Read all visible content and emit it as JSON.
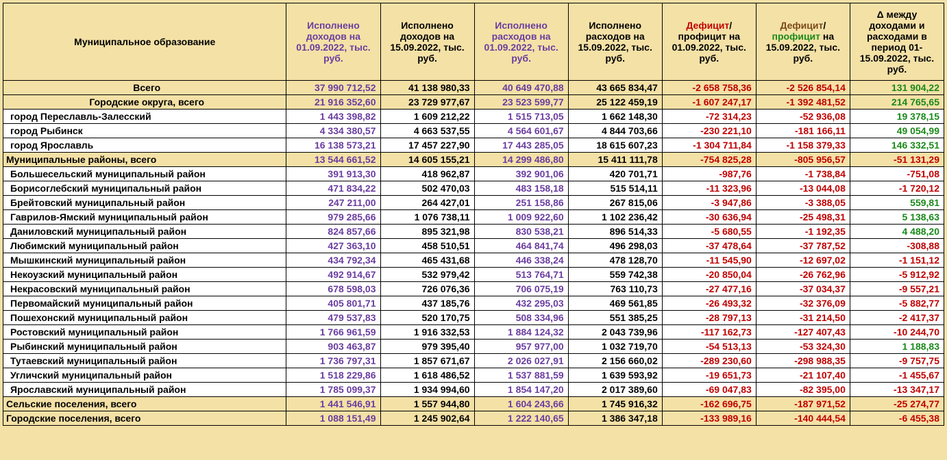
{
  "colors": {
    "black": "#000000",
    "purple": "#6a3da0",
    "red": "#c00000",
    "green": "#1a8a1a",
    "brown": "#7a4a17"
  },
  "columns": [
    {
      "key": "name",
      "label": "Муниципальное образование",
      "color": "black"
    },
    {
      "key": "c1",
      "label": "Исполнено доходов на 01.09.2022, тыс. руб.",
      "color": "purple"
    },
    {
      "key": "c2",
      "label": "Исполнено доходов на 15.09.2022, тыс. руб.",
      "color": "black"
    },
    {
      "key": "c3",
      "label": "Исполнено расходов на 01.09.2022, тыс. руб.",
      "color": "purple"
    },
    {
      "key": "c4",
      "label": "Исполнено расходов на 15.09.2022, тыс. руб.",
      "color": "black"
    },
    {
      "key": "c5",
      "label": "Дефицит/ профицит на 01.09.2022, тыс. руб.",
      "color": "black",
      "span_color": {
        "text": "Дефицит",
        "color": "red"
      }
    },
    {
      "key": "c6",
      "label": "Дефицит/ профицит на 15.09.2022, тыс. руб.",
      "color": "black",
      "span_color": {
        "text": "Дефицит",
        "color": "brown"
      },
      "span_color2": {
        "text": "профицит",
        "color": "green"
      }
    },
    {
      "key": "c7",
      "label": "Δ между доходами и расходами в период 01-15.09.2022, тыс. руб.",
      "color": "black"
    }
  ],
  "col_value_colors": {
    "c1": "purple",
    "c2": "black",
    "c3": "purple",
    "c4": "black",
    "c5": "red",
    "c6": "red",
    "c7": null
  },
  "rows": [
    {
      "type": "total",
      "name": "Всего",
      "align": "center",
      "c1": "37 990 712,52",
      "c2": "41 138 980,33",
      "c3": "40 649 470,88",
      "c4": "43 665 834,47",
      "c5": "-2 658 758,36",
      "c6": "-2 526 854,14",
      "c7": "131 904,22",
      "c7c": "green"
    },
    {
      "type": "subtotal",
      "name": "Городские округа, всего",
      "align": "center",
      "c1": "21 916 352,60",
      "c2": "23 729 977,67",
      "c3": "23 523 599,77",
      "c4": "25 122 459,19",
      "c5": "-1 607 247,17",
      "c6": "-1 392 481,52",
      "c7": "214 765,65",
      "c7c": "green"
    },
    {
      "type": "data",
      "name": "город Переславль-Залесский",
      "c1": "1 443 398,82",
      "c2": "1 609 212,22",
      "c3": "1 515 713,05",
      "c4": "1 662 148,30",
      "c5": "-72 314,23",
      "c6": "-52 936,08",
      "c7": "19 378,15",
      "c7c": "green"
    },
    {
      "type": "data",
      "name": "город Рыбинск",
      "c1": "4 334 380,57",
      "c2": "4 663 537,55",
      "c3": "4 564 601,67",
      "c4": "4 844 703,66",
      "c5": "-230 221,10",
      "c6": "-181 166,11",
      "c7": "49 054,99",
      "c7c": "green"
    },
    {
      "type": "data",
      "name": "город Ярославль",
      "c1": "16 138 573,21",
      "c2": "17 457 227,90",
      "c3": "17 443 285,05",
      "c4": "18 615 607,23",
      "c5": "-1 304 711,84",
      "c6": "-1 158 379,33",
      "c7": "146 332,51",
      "c7c": "green"
    },
    {
      "type": "subtotal-left",
      "name": "Муниципальные районы, всего",
      "c1": "13 544 661,52",
      "c2": "14 605 155,21",
      "c3": "14 299 486,80",
      "c4": "15 411 111,78",
      "c5": "-754 825,28",
      "c6": "-805 956,57",
      "c7": "-51 131,29",
      "c7c": "red"
    },
    {
      "type": "data",
      "name": "Большесельский муниципальный район",
      "c1": "391 913,30",
      "c2": "418 962,87",
      "c3": "392 901,06",
      "c4": "420 701,71",
      "c5": "-987,76",
      "c6": "-1 738,84",
      "c7": "-751,08",
      "c7c": "red"
    },
    {
      "type": "data",
      "name": "Борисоглебский муниципальный район",
      "c1": "471 834,22",
      "c2": "502 470,03",
      "c3": "483 158,18",
      "c4": "515 514,11",
      "c5": "-11 323,96",
      "c6": "-13 044,08",
      "c7": "-1 720,12",
      "c7c": "red"
    },
    {
      "type": "data",
      "name": "Брейтовский муниципальный район",
      "c1": "247 211,00",
      "c2": "264 427,01",
      "c3": "251 158,86",
      "c4": "267 815,06",
      "c5": "-3 947,86",
      "c6": "-3 388,05",
      "c7": "559,81",
      "c7c": "green"
    },
    {
      "type": "data",
      "name": "Гаврилов-Ямский муниципальный район",
      "c1": "979 285,66",
      "c2": "1 076 738,11",
      "c3": "1 009 922,60",
      "c4": "1 102 236,42",
      "c5": "-30 636,94",
      "c6": "-25 498,31",
      "c7": "5 138,63",
      "c7c": "green"
    },
    {
      "type": "data",
      "name": "Даниловский муниципальный район",
      "c1": "824 857,66",
      "c2": "895 321,98",
      "c3": "830 538,21",
      "c4": "896 514,33",
      "c5": "-5 680,55",
      "c6": "-1 192,35",
      "c7": "4 488,20",
      "c7c": "green"
    },
    {
      "type": "data",
      "name": "Любимский муниципальный район",
      "c1": "427 363,10",
      "c2": "458 510,51",
      "c3": "464 841,74",
      "c4": "496 298,03",
      "c5": "-37 478,64",
      "c6": "-37 787,52",
      "c7": "-308,88",
      "c7c": "red"
    },
    {
      "type": "data",
      "name": "Мышкинский муниципальный район",
      "c1": "434 792,34",
      "c2": "465 431,68",
      "c3": "446 338,24",
      "c4": "478 128,70",
      "c5": "-11 545,90",
      "c6": "-12 697,02",
      "c7": "-1 151,12",
      "c7c": "red"
    },
    {
      "type": "data",
      "name": "Некоузский муниципальный район",
      "c1": "492 914,67",
      "c2": "532 979,42",
      "c3": "513 764,71",
      "c4": "559 742,38",
      "c5": "-20 850,04",
      "c6": "-26 762,96",
      "c7": "-5 912,92",
      "c7c": "red"
    },
    {
      "type": "data",
      "name": "Некрасовский муниципальный район",
      "c1": "678 598,03",
      "c2": "726 076,36",
      "c3": "706 075,19",
      "c4": "763 110,73",
      "c5": "-27 477,16",
      "c6": "-37 034,37",
      "c7": "-9 557,21",
      "c7c": "red"
    },
    {
      "type": "data",
      "name": "Первомайский муниципальный район",
      "c1": "405 801,71",
      "c2": "437 185,76",
      "c3": "432 295,03",
      "c4": "469 561,85",
      "c5": "-26 493,32",
      "c6": "-32 376,09",
      "c7": "-5 882,77",
      "c7c": "red"
    },
    {
      "type": "data",
      "name": "Пошехонский муниципальный район",
      "c1": "479 537,83",
      "c2": "520 170,75",
      "c3": "508 334,96",
      "c4": "551 385,25",
      "c5": "-28 797,13",
      "c6": "-31 214,50",
      "c7": "-2 417,37",
      "c7c": "red"
    },
    {
      "type": "data",
      "name": "Ростовский муниципальный район",
      "c1": "1 766 961,59",
      "c2": "1 916 332,53",
      "c3": "1 884 124,32",
      "c4": "2 043 739,96",
      "c5": "-117 162,73",
      "c6": "-127 407,43",
      "c7": "-10 244,70",
      "c7c": "red"
    },
    {
      "type": "data",
      "name": "Рыбинский муниципальный район",
      "c1": "903 463,87",
      "c2": "979 395,40",
      "c3": "957 977,00",
      "c4": "1 032 719,70",
      "c5": "-54 513,13",
      "c6": "-53 324,30",
      "c7": "1 188,83",
      "c7c": "green"
    },
    {
      "type": "data",
      "name": "Тутаевский муниципальный район",
      "c1": "1 736 797,31",
      "c2": "1 857 671,67",
      "c3": "2 026 027,91",
      "c4": "2 156 660,02",
      "c5": "-289 230,60",
      "c6": "-298 988,35",
      "c7": "-9 757,75",
      "c7c": "red"
    },
    {
      "type": "data",
      "name": "Угличский муниципальный район",
      "c1": "1 518 229,86",
      "c2": "1 618 486,52",
      "c3": "1 537 881,59",
      "c4": "1 639 593,92",
      "c5": "-19 651,73",
      "c6": "-21 107,40",
      "c7": "-1 455,67",
      "c7c": "red"
    },
    {
      "type": "data",
      "name": "Ярославский муниципальный район",
      "c1": "1 785 099,37",
      "c2": "1 934 994,60",
      "c3": "1 854 147,20",
      "c4": "2 017 389,60",
      "c5": "-69 047,83",
      "c6": "-82 395,00",
      "c7": "-13 347,17",
      "c7c": "red"
    },
    {
      "type": "subtotal-left",
      "name": "Сельские поселения, всего",
      "c1": "1 441 546,91",
      "c2": "1 557 944,80",
      "c3": "1 604 243,66",
      "c4": "1 745 916,32",
      "c5": "-162 696,75",
      "c6": "-187 971,52",
      "c7": "-25 274,77",
      "c7c": "red"
    },
    {
      "type": "subtotal-left",
      "name": "Городские поселения, всего",
      "c1": "1 088 151,49",
      "c2": "1 245 902,64",
      "c3": "1 222 140,65",
      "c4": "1 386 347,18",
      "c5": "-133 989,16",
      "c6": "-140 444,54",
      "c7": "-6 455,38",
      "c7c": "red"
    }
  ]
}
